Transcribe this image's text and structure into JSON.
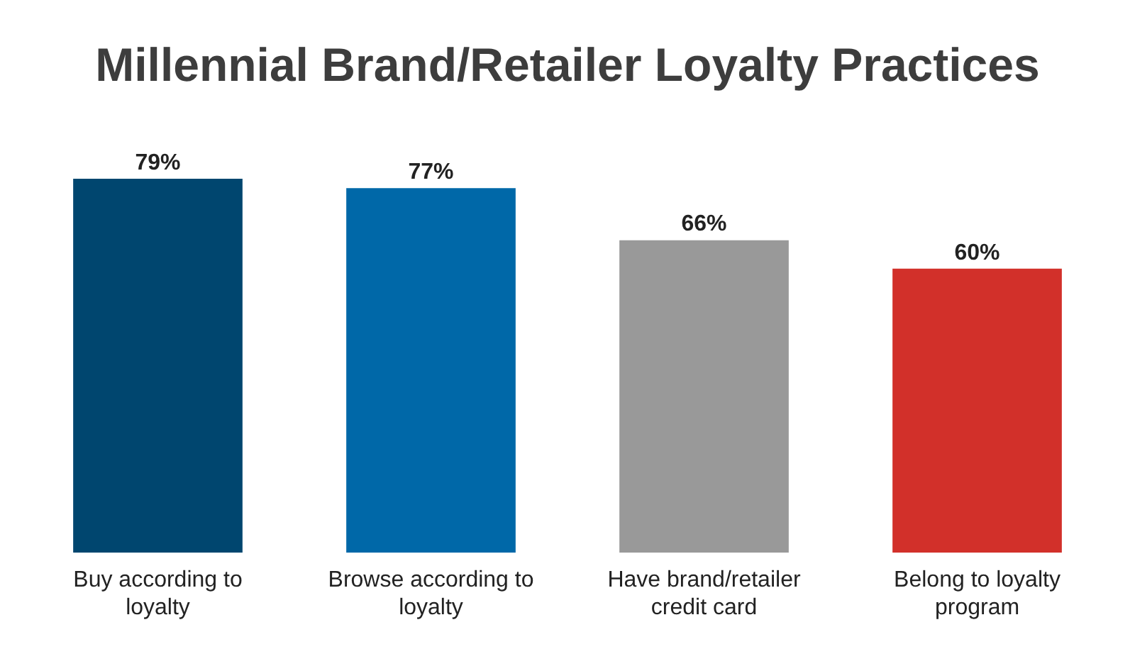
{
  "chart_data": {
    "type": "bar",
    "title": "Millennial Brand/Retailer Loyalty Practices",
    "categories": [
      "Buy according to loyalty",
      "Browse according to loyalty",
      "Have brand/retailer credit card",
      "Belong to loyalty program"
    ],
    "values": [
      79,
      77,
      66,
      60
    ],
    "value_labels": [
      "79%",
      "77%",
      "66%",
      "60%"
    ],
    "colors": [
      "#00466f",
      "#0068a8",
      "#999999",
      "#d2302a"
    ],
    "grid": false,
    "legend": false
  }
}
